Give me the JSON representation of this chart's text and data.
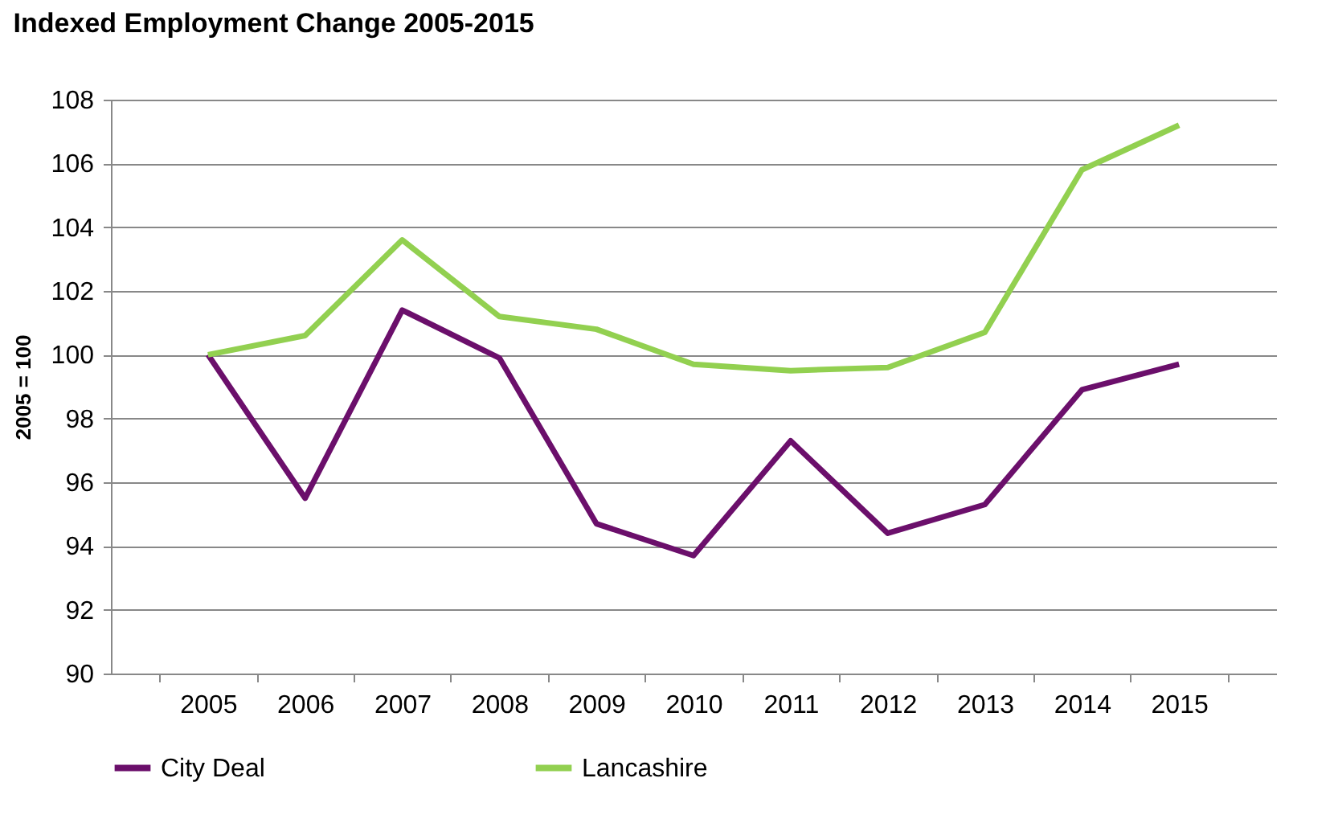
{
  "chart_data": {
    "type": "line",
    "title": "Indexed Employment Change 2005-2015",
    "ylabel": "2005 = 100",
    "categories": [
      "2005",
      "2006",
      "2007",
      "2008",
      "2009",
      "2010",
      "2011",
      "2012",
      "2013",
      "2014",
      "2015"
    ],
    "series": [
      {
        "name": "City Deal",
        "color": "#6b0f6b",
        "values": [
          100,
          95.5,
          101.4,
          99.9,
          94.7,
          93.7,
          97.3,
          94.4,
          95.3,
          98.9,
          99.7
        ]
      },
      {
        "name": "Lancashire",
        "color": "#92d050",
        "values": [
          100,
          100.6,
          103.6,
          101.2,
          100.8,
          99.7,
          99.5,
          99.6,
          100.7,
          105.8,
          107.2
        ]
      }
    ],
    "ylim": [
      90,
      108
    ],
    "yticks": [
      90,
      92,
      94,
      96,
      98,
      100,
      102,
      104,
      106,
      108
    ],
    "grid": "y",
    "legend": "bottom",
    "line_style": "solid"
  }
}
